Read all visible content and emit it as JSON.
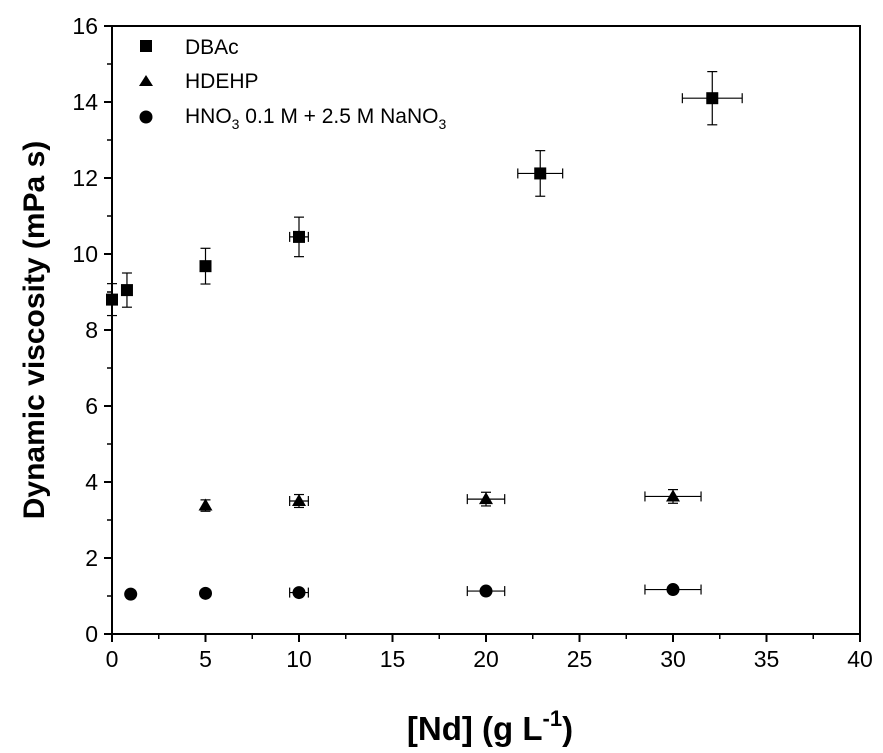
{
  "chart_data": {
    "type": "scatter",
    "xlabel": {
      "main": "[Nd] (g L",
      "sup": "-1",
      "end": ")"
    },
    "ylabel": "Dynamic viscosity (mPa s)",
    "xlim": [
      0,
      40
    ],
    "ylim": [
      0,
      16
    ],
    "x_ticks": [
      "0",
      "5",
      "10",
      "15",
      "20",
      "25",
      "30",
      "35",
      "40"
    ],
    "y_ticks": [
      "0",
      "2",
      "4",
      "6",
      "8",
      "10",
      "12",
      "14",
      "16"
    ],
    "grid": false,
    "legend_position": "top-left",
    "series": [
      {
        "name": "DBAc",
        "marker": "square",
        "points": [
          {
            "x": 0,
            "y": 8.8,
            "xerr": 0.0,
            "yerr": 0.42
          },
          {
            "x": 0.8,
            "y": 9.05,
            "xerr": 0.0,
            "yerr": 0.45
          },
          {
            "x": 5,
            "y": 9.68,
            "xerr": 0.0,
            "yerr": 0.47
          },
          {
            "x": 10,
            "y": 10.45,
            "xerr": 0.5,
            "yerr": 0.52
          },
          {
            "x": 22.9,
            "y": 12.12,
            "xerr": 1.2,
            "yerr": 0.6
          },
          {
            "x": 32.1,
            "y": 14.1,
            "xerr": 1.6,
            "yerr": 0.7
          }
        ]
      },
      {
        "name": "HDEHP",
        "marker": "triangle",
        "points": [
          {
            "x": 5,
            "y": 3.38,
            "xerr": 0.0,
            "yerr": 0.15
          },
          {
            "x": 10,
            "y": 3.5,
            "xerr": 0.5,
            "yerr": 0.17
          },
          {
            "x": 20,
            "y": 3.55,
            "xerr": 1.0,
            "yerr": 0.18
          },
          {
            "x": 30,
            "y": 3.62,
            "xerr": 1.5,
            "yerr": 0.18
          }
        ]
      },
      {
        "name_main": "HNO",
        "name_sub1": "3",
        "name_mid": " 0.1 M + 2.5 M NaNO",
        "name_sub2": "3",
        "marker": "circle",
        "points": [
          {
            "x": 1,
            "y": 1.05,
            "xerr": 0.0,
            "yerr": 0.0
          },
          {
            "x": 5,
            "y": 1.07,
            "xerr": 0.0,
            "yerr": 0.0
          },
          {
            "x": 10,
            "y": 1.09,
            "xerr": 0.5,
            "yerr": 0.0
          },
          {
            "x": 20,
            "y": 1.13,
            "xerr": 1.0,
            "yerr": 0.0
          },
          {
            "x": 30,
            "y": 1.17,
            "xerr": 1.5,
            "yerr": 0.0
          }
        ]
      }
    ]
  }
}
